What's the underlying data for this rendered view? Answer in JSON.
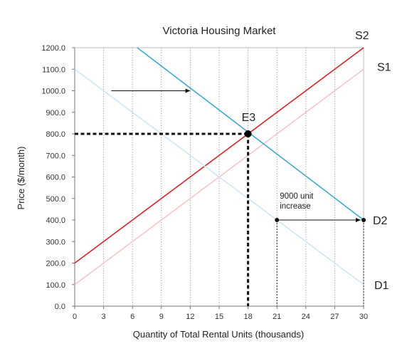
{
  "chart_data": {
    "type": "line",
    "title": "Victoria Housing Market",
    "xlabel": "Quantity of Total Rental Units (thousands)",
    "ylabel": "Price ($/month)",
    "xlim": [
      0,
      30
    ],
    "ylim": [
      0,
      1200
    ],
    "x_ticks": [
      "0",
      "3",
      "6",
      "9",
      "12",
      "15",
      "18",
      "21",
      "24",
      "27",
      "30"
    ],
    "y_ticks": [
      "0.0",
      "100.0",
      "200.0",
      "300.0",
      "400.0",
      "500.0",
      "600.0",
      "700.0",
      "800.0",
      "900.0",
      "1000.0",
      "1100.0",
      "1200.0"
    ],
    "grid": "vertical dotted",
    "series": [
      {
        "name": "S1",
        "color": "#f6c6c6",
        "x": [
          0,
          30
        ],
        "y": [
          100,
          1100
        ]
      },
      {
        "name": "S2",
        "color": "#dd2222",
        "x": [
          0,
          30
        ],
        "y": [
          200,
          1200
        ]
      },
      {
        "name": "D1",
        "color": "#cfe7f5",
        "x": [
          0,
          30
        ],
        "y": [
          1100,
          100
        ]
      },
      {
        "name": "D2",
        "color": "#3aaad8",
        "x": [
          6.5,
          30
        ],
        "y": [
          1200,
          400
        ]
      }
    ],
    "equilibrium": {
      "label": "E3",
      "x": 18,
      "y": 800
    },
    "annotations": [
      {
        "text_lines": [
          "9000 unit",
          "increase"
        ],
        "from": [
          21,
          400
        ],
        "to": [
          30,
          400
        ]
      },
      {
        "from": [
          3.8,
          1000
        ],
        "to": [
          12,
          1000
        ]
      }
    ]
  }
}
